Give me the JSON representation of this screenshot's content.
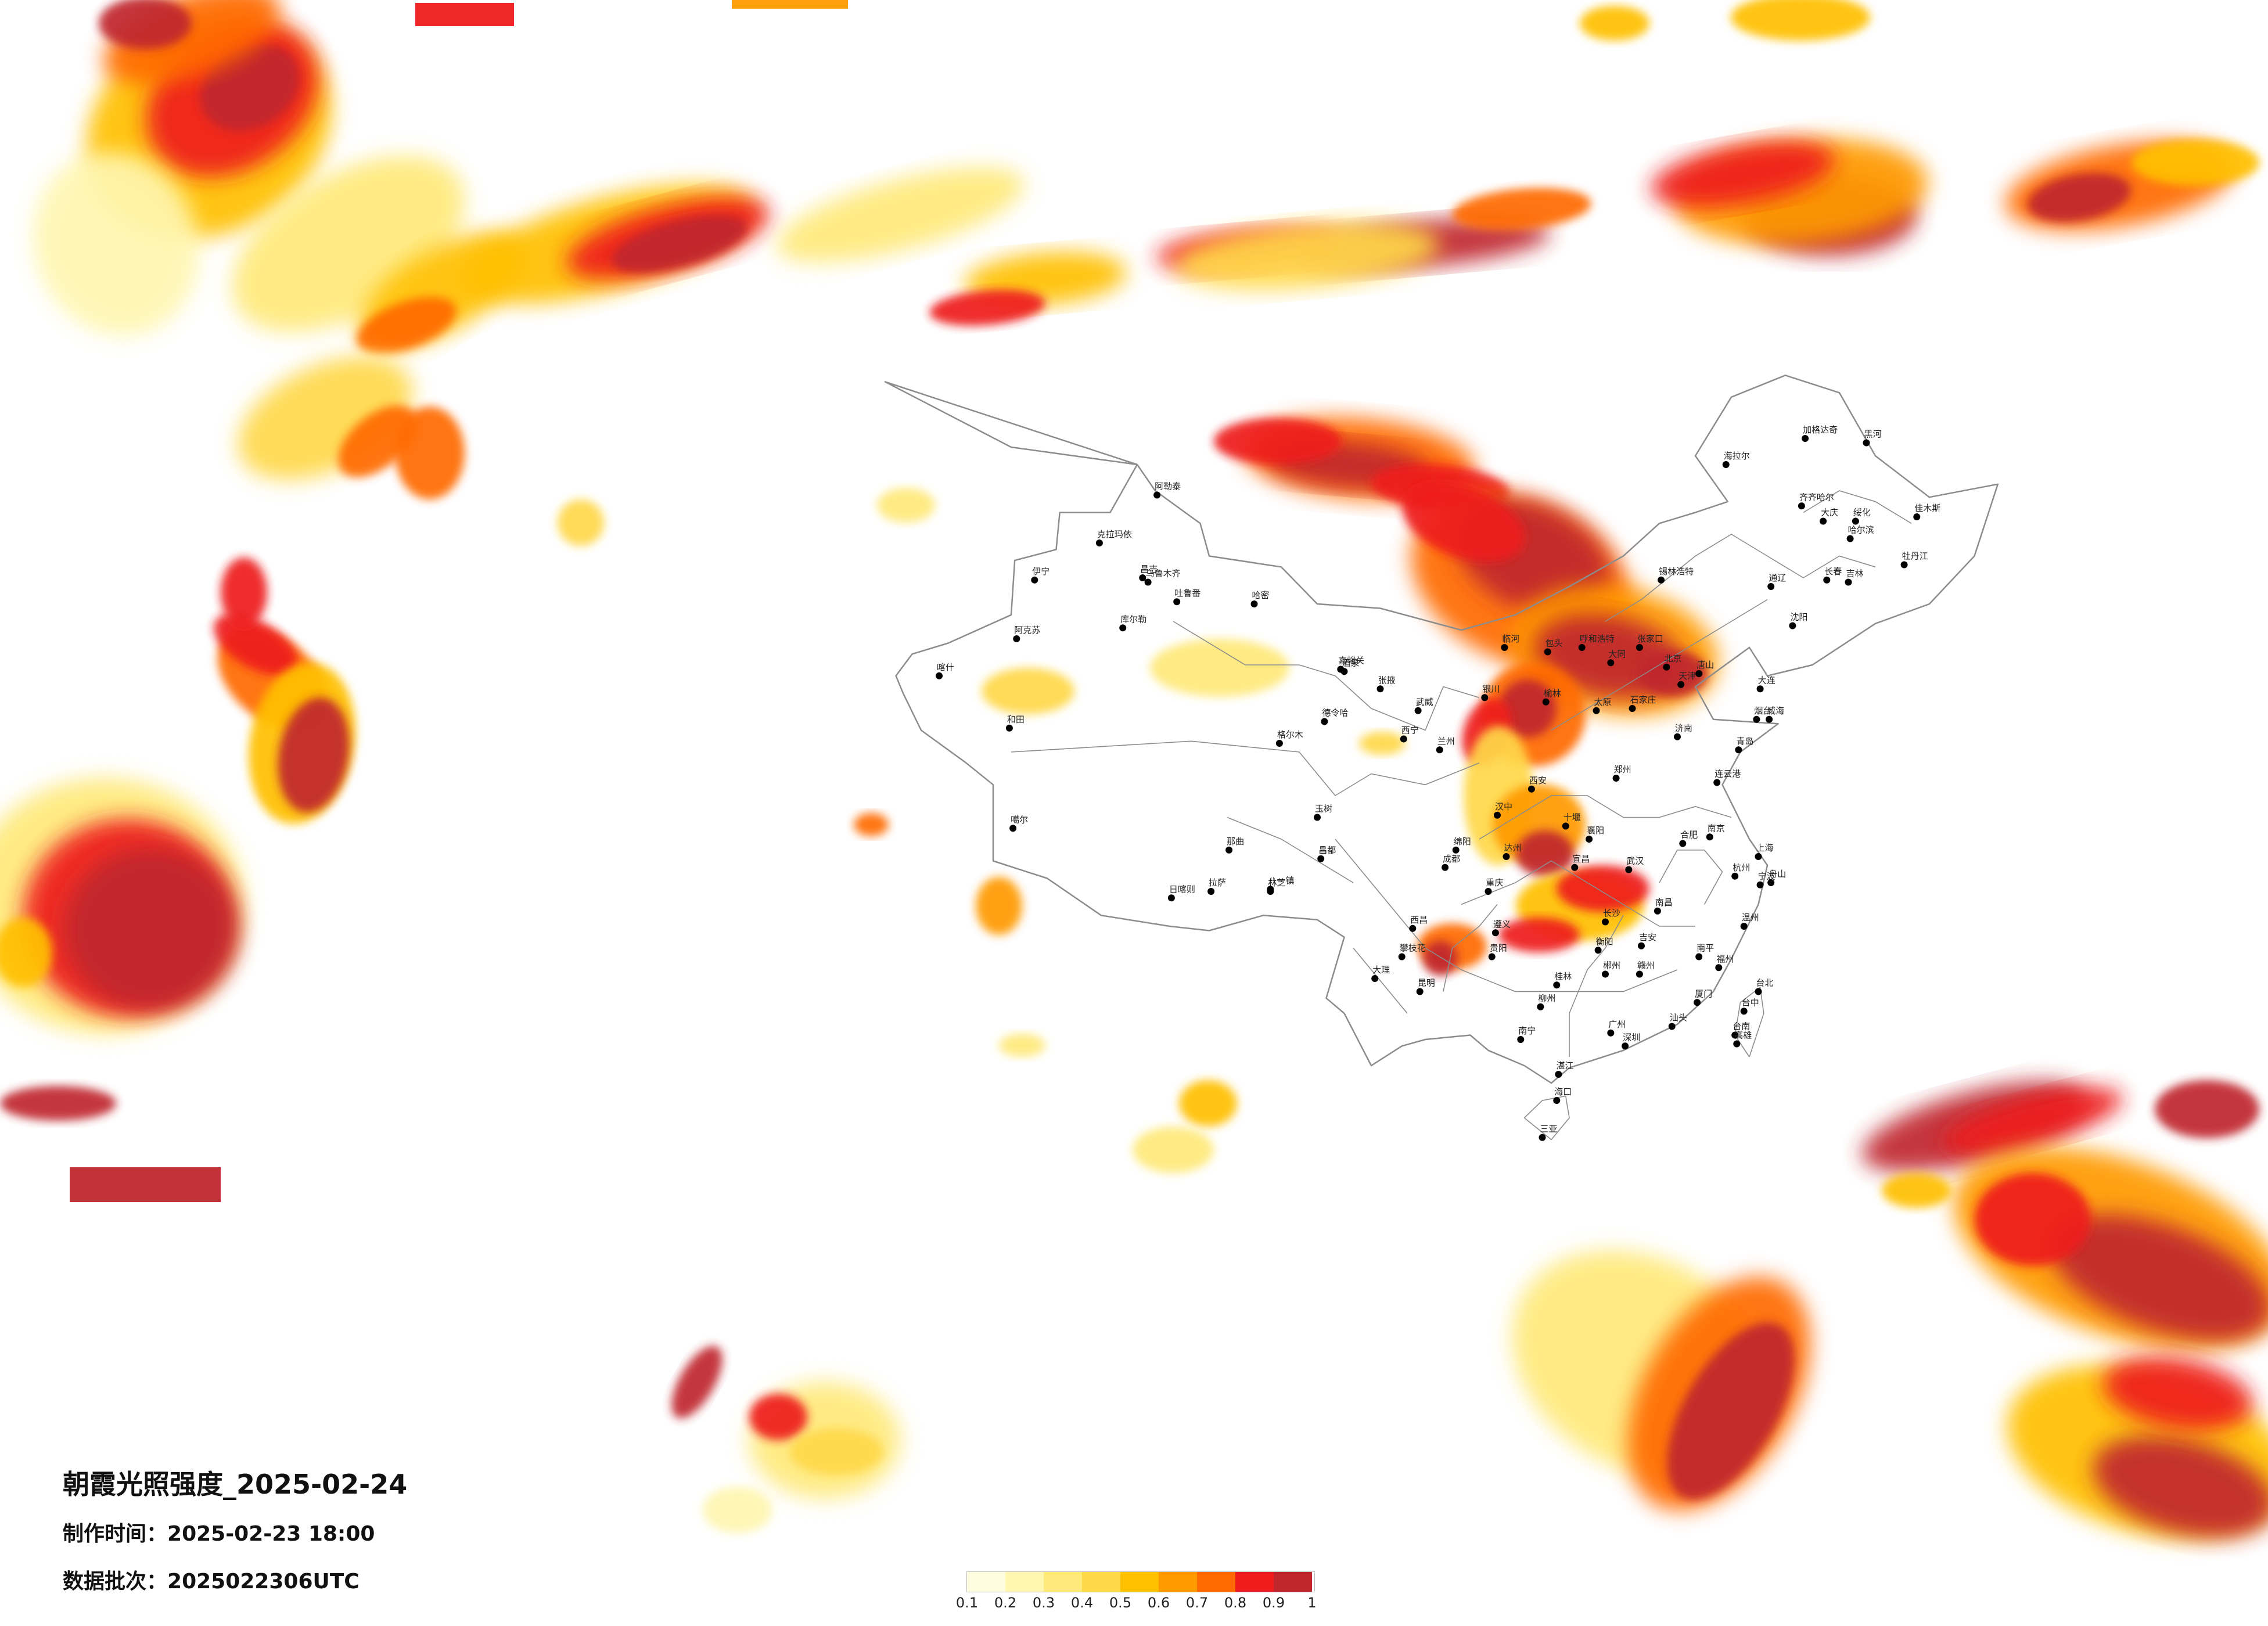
{
  "title": {
    "main": "朝霞光照强度_2025-02-24",
    "made_label": "制作时间：",
    "made_value": "2025-02-23 18:00",
    "batch_label": "数据批次：",
    "batch_value": "2025022306UTC"
  },
  "legend": {
    "colors": [
      "#fffde0",
      "#fff6b0",
      "#ffe97a",
      "#ffd84a",
      "#ffc000",
      "#ff9a00",
      "#ff6a00",
      "#ee1c1c",
      "#c0272d"
    ],
    "ticks": [
      "0.1",
      "0.2",
      "0.3",
      "0.4",
      "0.5",
      "0.6",
      "0.7",
      "0.8",
      "0.9",
      "1"
    ]
  },
  "map_colors": {
    "border": "#8c8c8c",
    "city_dot": "#000000"
  },
  "cities": [
    {
      "name": "哈尔滨",
      "lon": 126.6,
      "lat": 45.8
    },
    {
      "name": "齐齐哈尔",
      "lon": 123.9,
      "lat": 47.3
    },
    {
      "name": "海拉尔",
      "lon": 119.7,
      "lat": 49.2
    },
    {
      "name": "加格达奇",
      "lon": 124.1,
      "lat": 50.4
    },
    {
      "name": "黑河",
      "lon": 127.5,
      "lat": 50.2
    },
    {
      "name": "大庆",
      "lon": 125.1,
      "lat": 46.6
    },
    {
      "name": "绥化",
      "lon": 126.9,
      "lat": 46.6
    },
    {
      "name": "佳木斯",
      "lon": 130.3,
      "lat": 46.8
    },
    {
      "name": "牡丹江",
      "lon": 129.6,
      "lat": 44.6
    },
    {
      "name": "长春",
      "lon": 125.3,
      "lat": 43.9
    },
    {
      "name": "吉林",
      "lon": 126.5,
      "lat": 43.8
    },
    {
      "name": "通辽",
      "lon": 122.2,
      "lat": 43.6
    },
    {
      "name": "锡林浩特",
      "lon": 116.1,
      "lat": 43.9
    },
    {
      "name": "沈阳",
      "lon": 123.4,
      "lat": 41.8
    },
    {
      "name": "大连",
      "lon": 121.6,
      "lat": 38.9
    },
    {
      "name": "呼和浩特",
      "lon": 111.7,
      "lat": 40.8
    },
    {
      "name": "包头",
      "lon": 109.8,
      "lat": 40.6
    },
    {
      "name": "临河",
      "lon": 107.4,
      "lat": 40.8
    },
    {
      "name": "北京",
      "lon": 116.4,
      "lat": 39.9
    },
    {
      "name": "天津",
      "lon": 117.2,
      "lat": 39.1
    },
    {
      "name": "石家庄",
      "lon": 114.5,
      "lat": 38.0
    },
    {
      "name": "张家口",
      "lon": 114.9,
      "lat": 40.8
    },
    {
      "name": "唐山",
      "lon": 118.2,
      "lat": 39.6
    },
    {
      "name": "太原",
      "lon": 112.5,
      "lat": 37.9
    },
    {
      "name": "大同",
      "lon": 113.3,
      "lat": 40.1
    },
    {
      "name": "榆林",
      "lon": 109.7,
      "lat": 38.3
    },
    {
      "name": "银川",
      "lon": 106.3,
      "lat": 38.5
    },
    {
      "name": "西宁",
      "lon": 101.8,
      "lat": 36.6
    },
    {
      "name": "兰州",
      "lon": 103.8,
      "lat": 36.1
    },
    {
      "name": "西安",
      "lon": 108.9,
      "lat": 34.3
    },
    {
      "name": "郑州",
      "lon": 113.6,
      "lat": 34.8
    },
    {
      "name": "济南",
      "lon": 117.0,
      "lat": 36.7
    },
    {
      "name": "青岛",
      "lon": 120.4,
      "lat": 36.1
    },
    {
      "name": "烟台",
      "lon": 121.4,
      "lat": 37.5
    },
    {
      "name": "威海",
      "lon": 122.1,
      "lat": 37.5
    },
    {
      "name": "连云港",
      "lon": 119.2,
      "lat": 34.6
    },
    {
      "name": "南京",
      "lon": 118.8,
      "lat": 32.1
    },
    {
      "name": "上海",
      "lon": 121.5,
      "lat": 31.2
    },
    {
      "name": "杭州",
      "lon": 120.2,
      "lat": 30.3
    },
    {
      "name": "宁波",
      "lon": 121.6,
      "lat": 29.9
    },
    {
      "name": "舟山",
      "lon": 122.2,
      "lat": 30.0
    },
    {
      "name": "温州",
      "lon": 120.7,
      "lat": 28.0
    },
    {
      "name": "合肥",
      "lon": 117.3,
      "lat": 31.8
    },
    {
      "name": "武汉",
      "lon": 114.3,
      "lat": 30.6
    },
    {
      "name": "南昌",
      "lon": 115.9,
      "lat": 28.7
    },
    {
      "name": "长沙",
      "lon": 113.0,
      "lat": 28.2
    },
    {
      "name": "福州",
      "lon": 119.3,
      "lat": 26.1
    },
    {
      "name": "厦门",
      "lon": 118.1,
      "lat": 24.5
    },
    {
      "name": "广州",
      "lon": 113.3,
      "lat": 23.1
    },
    {
      "name": "深圳",
      "lon": 114.1,
      "lat": 22.5
    },
    {
      "name": "汕头",
      "lon": 116.7,
      "lat": 23.4
    },
    {
      "name": "湛江",
      "lon": 110.4,
      "lat": 21.2
    },
    {
      "name": "海口",
      "lon": 110.3,
      "lat": 20.0
    },
    {
      "name": "三亚",
      "lon": 109.5,
      "lat": 18.3
    },
    {
      "name": "南宁",
      "lon": 108.3,
      "lat": 22.8
    },
    {
      "name": "桂林",
      "lon": 110.3,
      "lat": 25.3
    },
    {
      "name": "柳州",
      "lon": 109.4,
      "lat": 24.3
    },
    {
      "name": "贵阳",
      "lon": 106.7,
      "lat": 26.6
    },
    {
      "name": "遵义",
      "lon": 106.9,
      "lat": 27.7
    },
    {
      "name": "昆明",
      "lon": 102.7,
      "lat": 25.0
    },
    {
      "name": "大理",
      "lon": 100.2,
      "lat": 25.6
    },
    {
      "name": "西昌",
      "lon": 102.3,
      "lat": 27.9
    },
    {
      "name": "攀枝花",
      "lon": 101.7,
      "lat": 26.6
    },
    {
      "name": "成都",
      "lon": 104.1,
      "lat": 30.7
    },
    {
      "name": "重庆",
      "lon": 106.5,
      "lat": 29.6
    },
    {
      "name": "绵阳",
      "lon": 104.7,
      "lat": 31.5
    },
    {
      "name": "达州",
      "lon": 107.5,
      "lat": 31.2
    },
    {
      "name": "汉中",
      "lon": 107.0,
      "lat": 33.1
    },
    {
      "name": "宜昌",
      "lon": 111.3,
      "lat": 30.7
    },
    {
      "name": "十堰",
      "lon": 110.8,
      "lat": 32.6
    },
    {
      "name": "襄阳",
      "lon": 112.1,
      "lat": 32.0
    },
    {
      "name": "衡阳",
      "lon": 112.6,
      "lat": 26.9
    },
    {
      "name": "郴州",
      "lon": 113.0,
      "lat": 25.8
    },
    {
      "name": "赣州",
      "lon": 114.9,
      "lat": 25.8
    },
    {
      "name": "吉安",
      "lon": 115.0,
      "lat": 27.1
    },
    {
      "name": "南平",
      "lon": 118.2,
      "lat": 26.6
    },
    {
      "name": "台北",
      "lon": 121.5,
      "lat": 25.0
    },
    {
      "name": "台中",
      "lon": 120.7,
      "lat": 24.1
    },
    {
      "name": "台南",
      "lon": 120.2,
      "lat": 23.0
    },
    {
      "name": "高雄",
      "lon": 120.3,
      "lat": 22.6
    },
    {
      "name": "拉萨",
      "lon": 91.1,
      "lat": 29.6
    },
    {
      "name": "日喀则",
      "lon": 88.9,
      "lat": 29.3
    },
    {
      "name": "林芝",
      "lon": 94.4,
      "lat": 29.6
    },
    {
      "name": "八一镇",
      "lon": 94.4,
      "lat": 29.7
    },
    {
      "name": "那曲",
      "lon": 92.1,
      "lat": 31.5
    },
    {
      "name": "昌都",
      "lon": 97.2,
      "lat": 31.1
    },
    {
      "name": "玉树",
      "lon": 97.0,
      "lat": 33.0
    },
    {
      "name": "格尔木",
      "lon": 94.9,
      "lat": 36.4
    },
    {
      "name": "德令哈",
      "lon": 97.4,
      "lat": 37.4
    },
    {
      "name": "嘉峪关",
      "lon": 98.3,
      "lat": 39.8
    },
    {
      "name": "酒泉",
      "lon": 98.5,
      "lat": 39.7
    },
    {
      "name": "张掖",
      "lon": 100.5,
      "lat": 38.9
    },
    {
      "name": "武威",
      "lon": 102.6,
      "lat": 37.9
    },
    {
      "name": "乌鲁木齐",
      "lon": 87.6,
      "lat": 43.8
    },
    {
      "name": "吐鲁番",
      "lon": 89.2,
      "lat": 42.9
    },
    {
      "name": "哈密",
      "lon": 93.5,
      "lat": 42.8
    },
    {
      "name": "库尔勒",
      "lon": 86.2,
      "lat": 41.7
    },
    {
      "name": "阿克苏",
      "lon": 80.3,
      "lat": 41.2
    },
    {
      "name": "喀什",
      "lon": 76.0,
      "lat": 39.5
    },
    {
      "name": "和田",
      "lon": 79.9,
      "lat": 37.1
    },
    {
      "name": "伊宁",
      "lon": 81.3,
      "lat": 43.9
    },
    {
      "name": "克拉玛依",
      "lon": 84.9,
      "lat": 45.6
    },
    {
      "name": "阿勒泰",
      "lon": 88.1,
      "lat": 47.8
    },
    {
      "name": "昌吉",
      "lon": 87.3,
      "lat": 44.0
    },
    {
      "name": "噶尔",
      "lon": 80.1,
      "lat": 32.5
    }
  ]
}
